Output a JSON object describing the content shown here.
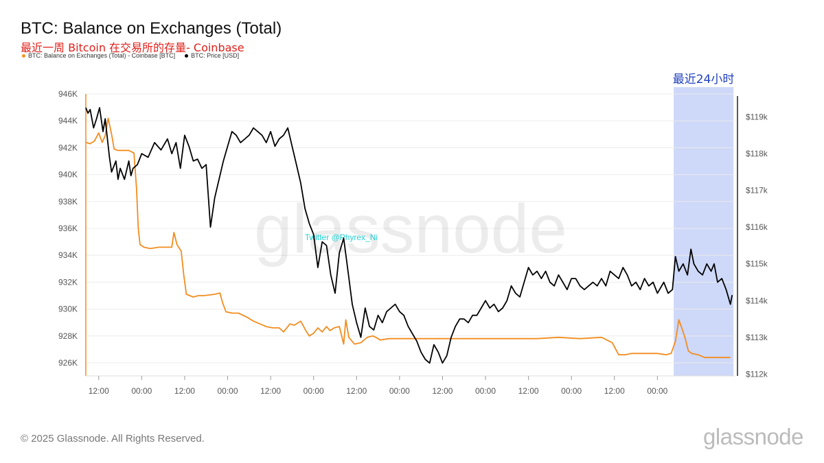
{
  "title": "BTC: Balance on Exchanges (Total)",
  "subtitle": "最近一周 Bitcoin 在交易所的存量- Coinbase",
  "legend": [
    {
      "label": "BTC: Balance on Exchanges (Total) - Coinbase [BTC]",
      "color": "#f7931a"
    },
    {
      "label": "BTC: Price [USD]",
      "color": "#000000"
    }
  ],
  "highlight_label": "最近24小时",
  "watermark": "glassnode",
  "twitter_tag": "Twitter @Phyrex_Ni",
  "footer": "© 2025 Glassnode. All Rights Reserved.",
  "brand": "glassnode",
  "colors": {
    "balance": "#f28c1e",
    "price": "#000000",
    "highlight": "#c9d4f7",
    "highlight_text": "#1f3fbf",
    "twitter": "#23d1d1"
  },
  "chart_data": {
    "type": "line",
    "x_ticks": [
      "12:00",
      "00:00",
      "12:00",
      "00:00",
      "12:00",
      "00:00",
      "12:00",
      "00:00",
      "12:00",
      "00:00",
      "12:00",
      "00:00",
      "12:00",
      "00:00"
    ],
    "left_axis": {
      "ticks": [
        "946K",
        "944K",
        "942K",
        "940K",
        "938K",
        "936K",
        "934K",
        "932K",
        "930K",
        "928K",
        "926K"
      ],
      "range": [
        925000,
        946000
      ]
    },
    "right_axis": {
      "ticks": [
        "$119k",
        "$118k",
        "$117k",
        "$116k",
        "$115k",
        "$114k",
        "$113k",
        "$112k"
      ],
      "range": [
        111800,
        119500
      ]
    },
    "highlight_range": [
      13.68,
      15.07
    ],
    "series": [
      {
        "name": "BTC: Balance on Exchanges (Total) - Coinbase [BTC]",
        "axis": "left",
        "points": [
          [
            0.0,
            942400
          ],
          [
            0.1,
            942300
          ],
          [
            0.2,
            942500
          ],
          [
            0.3,
            943100
          ],
          [
            0.38,
            942400
          ],
          [
            0.45,
            942900
          ],
          [
            0.52,
            944200
          ],
          [
            0.6,
            943000
          ],
          [
            0.66,
            941900
          ],
          [
            0.75,
            941800
          ],
          [
            0.85,
            941800
          ],
          [
            1.0,
            941800
          ],
          [
            1.12,
            941600
          ],
          [
            1.18,
            939000
          ],
          [
            1.22,
            936000
          ],
          [
            1.26,
            934800
          ],
          [
            1.35,
            934600
          ],
          [
            1.5,
            934500
          ],
          [
            1.7,
            934600
          ],
          [
            1.85,
            934600
          ],
          [
            2.0,
            934600
          ],
          [
            2.05,
            935700
          ],
          [
            2.12,
            934800
          ],
          [
            2.22,
            934300
          ],
          [
            2.28,
            932500
          ],
          [
            2.34,
            931100
          ],
          [
            2.5,
            930900
          ],
          [
            2.62,
            931000
          ],
          [
            2.75,
            931000
          ],
          [
            3.0,
            931100
          ],
          [
            3.12,
            931200
          ],
          [
            3.18,
            930500
          ],
          [
            3.26,
            929800
          ],
          [
            3.4,
            929700
          ],
          [
            3.55,
            929700
          ],
          [
            3.75,
            929400
          ],
          [
            3.9,
            929100
          ],
          [
            4.05,
            928900
          ],
          [
            4.2,
            928700
          ],
          [
            4.35,
            928600
          ],
          [
            4.5,
            928600
          ],
          [
            4.6,
            928300
          ],
          [
            4.75,
            928900
          ],
          [
            4.85,
            928800
          ],
          [
            5.0,
            929100
          ],
          [
            5.12,
            928400
          ],
          [
            5.2,
            928000
          ],
          [
            5.3,
            928200
          ],
          [
            5.4,
            928600
          ],
          [
            5.5,
            928300
          ],
          [
            5.6,
            928700
          ],
          [
            5.68,
            928400
          ],
          [
            5.78,
            928600
          ],
          [
            5.9,
            928700
          ],
          [
            6.0,
            927400
          ],
          [
            6.05,
            929200
          ],
          [
            6.12,
            927900
          ],
          [
            6.25,
            927400
          ],
          [
            6.4,
            927500
          ],
          [
            6.55,
            927900
          ],
          [
            6.68,
            928000
          ],
          [
            6.75,
            927900
          ],
          [
            6.85,
            927700
          ],
          [
            7.05,
            927800
          ],
          [
            7.3,
            927800
          ],
          [
            7.6,
            927800
          ],
          [
            7.9,
            927800
          ],
          [
            8.1,
            927800
          ],
          [
            8.4,
            927800
          ],
          [
            8.7,
            927800
          ],
          [
            9.0,
            927800
          ],
          [
            9.5,
            927800
          ],
          [
            10.0,
            927800
          ],
          [
            10.5,
            927800
          ],
          [
            11.0,
            927900
          ],
          [
            11.5,
            927800
          ],
          [
            12.0,
            927900
          ],
          [
            12.25,
            927500
          ],
          [
            12.4,
            926600
          ],
          [
            12.55,
            926600
          ],
          [
            12.7,
            926700
          ],
          [
            12.85,
            926700
          ],
          [
            13.0,
            926700
          ],
          [
            13.15,
            926700
          ],
          [
            13.3,
            926700
          ],
          [
            13.5,
            926600
          ],
          [
            13.62,
            926700
          ],
          [
            13.72,
            927600
          ],
          [
            13.8,
            929200
          ],
          [
            13.88,
            928500
          ],
          [
            13.95,
            927800
          ],
          [
            14.02,
            926900
          ],
          [
            14.1,
            926700
          ],
          [
            14.25,
            926600
          ],
          [
            14.4,
            926400
          ],
          [
            14.6,
            926400
          ],
          [
            14.8,
            926400
          ],
          [
            15.0,
            926400
          ]
        ]
      },
      {
        "name": "BTC: Price [USD]",
        "axis": "right",
        "points": [
          [
            0.0,
            119250
          ],
          [
            0.05,
            119100
          ],
          [
            0.1,
            119200
          ],
          [
            0.18,
            118700
          ],
          [
            0.25,
            118950
          ],
          [
            0.32,
            119250
          ],
          [
            0.4,
            118600
          ],
          [
            0.45,
            118950
          ],
          [
            0.55,
            117900
          ],
          [
            0.6,
            117500
          ],
          [
            0.7,
            117800
          ],
          [
            0.75,
            117300
          ],
          [
            0.8,
            117600
          ],
          [
            0.9,
            117300
          ],
          [
            1.0,
            117800
          ],
          [
            1.05,
            117400
          ],
          [
            1.1,
            117600
          ],
          [
            1.2,
            117700
          ],
          [
            1.3,
            118000
          ],
          [
            1.45,
            117900
          ],
          [
            1.6,
            118300
          ],
          [
            1.75,
            118100
          ],
          [
            1.9,
            118400
          ],
          [
            2.0,
            118000
          ],
          [
            2.1,
            118300
          ],
          [
            2.2,
            117600
          ],
          [
            2.3,
            118500
          ],
          [
            2.4,
            118200
          ],
          [
            2.5,
            117800
          ],
          [
            2.6,
            117850
          ],
          [
            2.7,
            117600
          ],
          [
            2.8,
            117700
          ],
          [
            2.9,
            116000
          ],
          [
            3.0,
            116800
          ],
          [
            3.1,
            117300
          ],
          [
            3.2,
            117800
          ],
          [
            3.3,
            118200
          ],
          [
            3.4,
            118600
          ],
          [
            3.5,
            118500
          ],
          [
            3.6,
            118300
          ],
          [
            3.7,
            118400
          ],
          [
            3.8,
            118500
          ],
          [
            3.9,
            118700
          ],
          [
            4.0,
            118600
          ],
          [
            4.1,
            118500
          ],
          [
            4.2,
            118300
          ],
          [
            4.3,
            118600
          ],
          [
            4.4,
            118200
          ],
          [
            4.5,
            118400
          ],
          [
            4.6,
            118500
          ],
          [
            4.7,
            118700
          ],
          [
            4.8,
            118200
          ],
          [
            4.9,
            117700
          ],
          [
            5.0,
            117200
          ],
          [
            5.1,
            116500
          ],
          [
            5.2,
            116100
          ],
          [
            5.3,
            115800
          ],
          [
            5.4,
            114900
          ],
          [
            5.5,
            115600
          ],
          [
            5.6,
            115500
          ],
          [
            5.7,
            114700
          ],
          [
            5.8,
            114200
          ],
          [
            5.9,
            115300
          ],
          [
            6.0,
            115700
          ],
          [
            6.1,
            114800
          ],
          [
            6.2,
            113900
          ],
          [
            6.3,
            113400
          ],
          [
            6.4,
            113000
          ],
          [
            6.5,
            113800
          ],
          [
            6.6,
            113300
          ],
          [
            6.7,
            113200
          ],
          [
            6.8,
            113600
          ],
          [
            6.9,
            113400
          ],
          [
            7.0,
            113700
          ],
          [
            7.1,
            113800
          ],
          [
            7.2,
            113900
          ],
          [
            7.3,
            113700
          ],
          [
            7.4,
            113600
          ],
          [
            7.5,
            113300
          ],
          [
            7.6,
            113100
          ],
          [
            7.7,
            112900
          ],
          [
            7.8,
            112600
          ],
          [
            7.9,
            112400
          ],
          [
            8.0,
            112300
          ],
          [
            8.1,
            112800
          ],
          [
            8.2,
            112600
          ],
          [
            8.3,
            112300
          ],
          [
            8.4,
            112500
          ],
          [
            8.5,
            113000
          ],
          [
            8.6,
            113300
          ],
          [
            8.7,
            113500
          ],
          [
            8.8,
            113500
          ],
          [
            8.9,
            113400
          ],
          [
            9.0,
            113600
          ],
          [
            9.1,
            113600
          ],
          [
            9.2,
            113800
          ],
          [
            9.3,
            114000
          ],
          [
            9.4,
            113800
          ],
          [
            9.5,
            113900
          ],
          [
            9.6,
            113700
          ],
          [
            9.7,
            113800
          ],
          [
            9.8,
            114000
          ],
          [
            9.9,
            114400
          ],
          [
            10.0,
            114200
          ],
          [
            10.1,
            114100
          ],
          [
            10.2,
            114500
          ],
          [
            10.3,
            114900
          ],
          [
            10.4,
            114700
          ],
          [
            10.5,
            114800
          ],
          [
            10.6,
            114600
          ],
          [
            10.7,
            114800
          ],
          [
            10.8,
            114500
          ],
          [
            10.9,
            114400
          ],
          [
            11.0,
            114700
          ],
          [
            11.1,
            114500
          ],
          [
            11.2,
            114300
          ],
          [
            11.3,
            114600
          ],
          [
            11.4,
            114600
          ],
          [
            11.5,
            114400
          ],
          [
            11.6,
            114300
          ],
          [
            11.7,
            114400
          ],
          [
            11.8,
            114500
          ],
          [
            11.9,
            114400
          ],
          [
            12.0,
            114600
          ],
          [
            12.1,
            114400
          ],
          [
            12.2,
            114800
          ],
          [
            12.3,
            114700
          ],
          [
            12.4,
            114600
          ],
          [
            12.5,
            114900
          ],
          [
            12.6,
            114700
          ],
          [
            12.7,
            114400
          ],
          [
            12.8,
            114500
          ],
          [
            12.9,
            114300
          ],
          [
            13.0,
            114600
          ],
          [
            13.1,
            114400
          ],
          [
            13.2,
            114500
          ],
          [
            13.3,
            114200
          ],
          [
            13.45,
            114500
          ],
          [
            13.55,
            114200
          ],
          [
            13.65,
            114300
          ],
          [
            13.72,
            115200
          ],
          [
            13.8,
            114800
          ],
          [
            13.9,
            115000
          ],
          [
            14.0,
            114700
          ],
          [
            14.08,
            115400
          ],
          [
            14.15,
            115000
          ],
          [
            14.25,
            114800
          ],
          [
            14.35,
            114700
          ],
          [
            14.45,
            115000
          ],
          [
            14.55,
            114800
          ],
          [
            14.62,
            115000
          ],
          [
            14.7,
            114500
          ],
          [
            14.8,
            114600
          ],
          [
            14.9,
            114300
          ],
          [
            14.95,
            114100
          ],
          [
            15.0,
            113900
          ],
          [
            15.04,
            114150
          ]
        ]
      }
    ]
  }
}
